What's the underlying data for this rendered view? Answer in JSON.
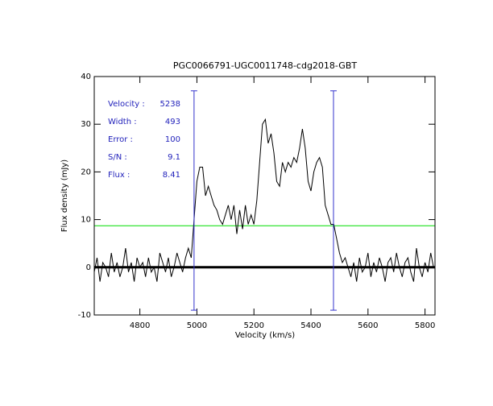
{
  "chart_data": {
    "type": "line",
    "title": "PGC0066791-UGC0011748-cdg2018-GBT",
    "x_label": "Velocity (km/s)",
    "y_label": "Flux density (mJy)",
    "xlim": [
      4640,
      5835
    ],
    "ylim": [
      -10,
      40
    ],
    "xticks": [
      4800,
      5000,
      5200,
      5400,
      5600,
      5800
    ],
    "yticks": [
      -10,
      0,
      10,
      20,
      30,
      40
    ],
    "series": [
      {
        "color": "#000000",
        "x": [
          4640,
          4650,
          4660,
          4670,
          4680,
          4690,
          4700,
          4710,
          4720,
          4730,
          4740,
          4750,
          4760,
          4770,
          4780,
          4790,
          4800,
          4810,
          4820,
          4830,
          4840,
          4850,
          4860,
          4870,
          4880,
          4890,
          4900,
          4910,
          4920,
          4930,
          4940,
          4950,
          4960,
          4970,
          4980,
          4990,
          5000,
          5010,
          5020,
          5030,
          5040,
          5050,
          5060,
          5070,
          5080,
          5090,
          5100,
          5110,
          5120,
          5130,
          5140,
          5150,
          5160,
          5170,
          5180,
          5190,
          5200,
          5210,
          5220,
          5230,
          5240,
          5250,
          5260,
          5270,
          5280,
          5290,
          5300,
          5310,
          5320,
          5330,
          5340,
          5350,
          5360,
          5370,
          5380,
          5390,
          5400,
          5410,
          5420,
          5430,
          5440,
          5450,
          5460,
          5470,
          5480,
          5490,
          5500,
          5510,
          5520,
          5530,
          5540,
          5550,
          5560,
          5570,
          5580,
          5590,
          5600,
          5610,
          5620,
          5630,
          5640,
          5650,
          5660,
          5670,
          5680,
          5690,
          5700,
          5710,
          5720,
          5730,
          5740,
          5750,
          5760,
          5770,
          5780,
          5790,
          5800,
          5810,
          5820,
          5830
        ],
        "values": [
          -1,
          2,
          -3,
          1,
          0,
          -2,
          3,
          -1,
          1,
          -2,
          0,
          4,
          -1,
          1,
          -3,
          2,
          0,
          1,
          -2,
          2,
          -1,
          0,
          -3,
          3,
          1,
          -1,
          2,
          -2,
          0,
          3,
          1,
          -1,
          2,
          4,
          2,
          10,
          18,
          21,
          21,
          15,
          17,
          15,
          13,
          12,
          10,
          9,
          11,
          13,
          10,
          13,
          7,
          12,
          8,
          13,
          9,
          11,
          9,
          14,
          22,
          30,
          31,
          26,
          28,
          24,
          18,
          17,
          22,
          20,
          22,
          21,
          23,
          22,
          25,
          29,
          25,
          18,
          16,
          20,
          22,
          23,
          21,
          13,
          11,
          9,
          9,
          6,
          3,
          1,
          2,
          0,
          -2,
          1,
          -3,
          2,
          -1,
          0,
          3,
          -2,
          1,
          -1,
          2,
          0,
          -3,
          1,
          2,
          -1,
          3,
          0,
          -2,
          1,
          2,
          -1,
          -3,
          4,
          0,
          -2,
          1,
          -1,
          3,
          0
        ]
      }
    ],
    "hlines": [
      {
        "y": 8.7,
        "color": "#00dd00"
      },
      {
        "y": 0,
        "color": "#000000"
      }
    ],
    "vlines": [
      {
        "x": 4990,
        "ymin": -9,
        "ymax": 37,
        "color": "#3333cc"
      },
      {
        "x": 5479,
        "ymin": -9,
        "ymax": 37,
        "color": "#3333cc"
      }
    ],
    "annotations": [
      {
        "label": "Velocity :",
        "value": "5238"
      },
      {
        "label": "Width :",
        "value": "493"
      },
      {
        "label": "Error :",
        "value": "100"
      },
      {
        "label": "S/N :",
        "value": "9.1"
      },
      {
        "label": "Flux :",
        "value": "8.41"
      }
    ],
    "annotation_color": "#2222bb"
  }
}
